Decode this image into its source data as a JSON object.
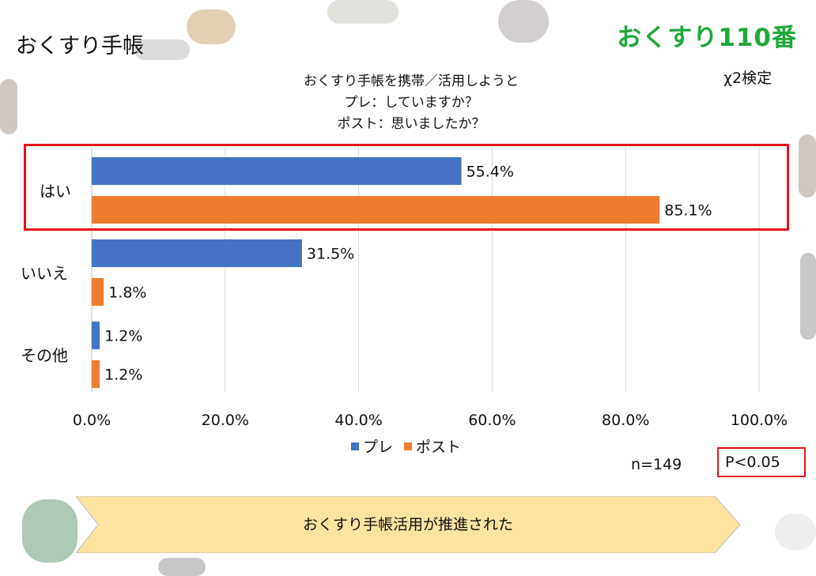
{
  "slide_title": "おくすり手帳",
  "brand": "おくすり110番",
  "stat_test": "χ2検定",
  "sample_size": "n=149",
  "p_value": "P<0.05",
  "conclusion": "おくすり手帳活用が推進された",
  "colors": {
    "pre": "#4472c4",
    "post": "#ed7d31",
    "highlight": "#e3151b",
    "brand": "#1fa83a",
    "banner": "#fde3a0"
  },
  "chart_data": {
    "type": "bar",
    "orientation": "horizontal",
    "title_lines": [
      "おくすり手帳を携帯／活用しようと",
      "プレ：していますか？",
      "ポスト：思いましたか？"
    ],
    "categories": [
      "はい",
      "いいえ",
      "その他"
    ],
    "series": [
      {
        "name": "プレ",
        "values": [
          55.4,
          31.5,
          1.2
        ],
        "labels": [
          "55.4%",
          "31.5%",
          "1.2%"
        ]
      },
      {
        "name": "ポスト",
        "values": [
          85.1,
          1.8,
          1.2
        ],
        "labels": [
          "85.1%",
          "1.8%",
          "1.2%"
        ]
      }
    ],
    "xlim": [
      0,
      100
    ],
    "xticks": [
      "0.0%",
      "20.0%",
      "40.0%",
      "60.0%",
      "80.0%",
      "100.0%"
    ],
    "grid": true,
    "legend_position": "bottom",
    "highlighted_category": "はい"
  }
}
